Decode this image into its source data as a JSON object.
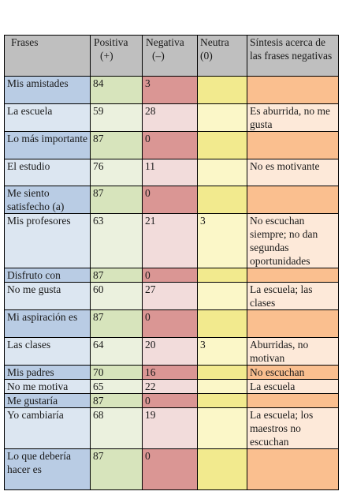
{
  "table": {
    "headers": [
      {
        "lines": [
          "Frases"
        ]
      },
      {
        "lines": [
          "Positiva",
          "(+)"
        ]
      },
      {
        "lines": [
          "Negativa",
          "(–)"
        ]
      },
      {
        "lines": [
          "Neutra",
          "(0)"
        ]
      },
      {
        "lines": [
          "Síntesis acerca de las frases negativas"
        ]
      }
    ],
    "rows": [
      {
        "frase": "Mis amistades",
        "positiva": "84",
        "negativa": "3",
        "neutra": "",
        "sintesis": ""
      },
      {
        "frase": "La escuela",
        "positiva": "59",
        "negativa": "28",
        "neutra": "",
        "sintesis": "Es aburrida, no me gusta"
      },
      {
        "frase": "Lo más importante",
        "positiva": "87",
        "negativa": "0",
        "neutra": "",
        "sintesis": ""
      },
      {
        "frase": "El estudio",
        "positiva": "76",
        "negativa": "11",
        "neutra": "",
        "sintesis": "No es motivante"
      },
      {
        "frase": "Me siento satisfecho (a)",
        "positiva": "87",
        "negativa": "0",
        "neutra": "",
        "sintesis": ""
      },
      {
        "frase": "Mis profesores",
        "positiva": "63",
        "negativa": "21",
        "neutra": "3",
        "sintesis": "No escuchan siempre; no dan segundas oportunidades"
      },
      {
        "frase": "Disfruto con",
        "positiva": "87",
        "negativa": "0",
        "neutra": "",
        "sintesis": ""
      },
      {
        "frase": "No me gusta",
        "positiva": "60",
        "negativa": "27",
        "neutra": "",
        "sintesis": "La escuela; las clases"
      },
      {
        "frase": "Mi aspiración es",
        "positiva": "87",
        "negativa": "0",
        "neutra": "",
        "sintesis": ""
      },
      {
        "frase": "Las clases",
        "positiva": "64",
        "negativa": "20",
        "neutra": "3",
        "sintesis": "Aburridas, no motivan"
      },
      {
        "frase": "Mis padres",
        "positiva": "70",
        "negativa": "16",
        "neutra": "",
        "sintesis": "No escuchan"
      },
      {
        "frase": "No me motiva",
        "positiva": "65",
        "negativa": "22",
        "neutra": "",
        "sintesis": "La escuela"
      },
      {
        "frase": "Me gustaría",
        "positiva": "87",
        "negativa": "0",
        "neutra": "",
        "sintesis": ""
      },
      {
        "frase": "Yo cambiaría",
        "positiva": "68",
        "negativa": "19",
        "neutra": "",
        "sintesis": "La escuela; los maestros no escuchan"
      },
      {
        "frase": "Lo que debería hacer es",
        "positiva": "87",
        "negativa": "0",
        "neutra": "",
        "sintesis": ""
      }
    ]
  },
  "colors": {
    "header": "#bfbfbf",
    "frase_strong": "#b9cce4",
    "positiva_strong": "#d7e4bc",
    "negativa_strong": "#da9694",
    "neutra_strong": "#f2ea8e",
    "sintesis_strong": "#fabf8f"
  }
}
